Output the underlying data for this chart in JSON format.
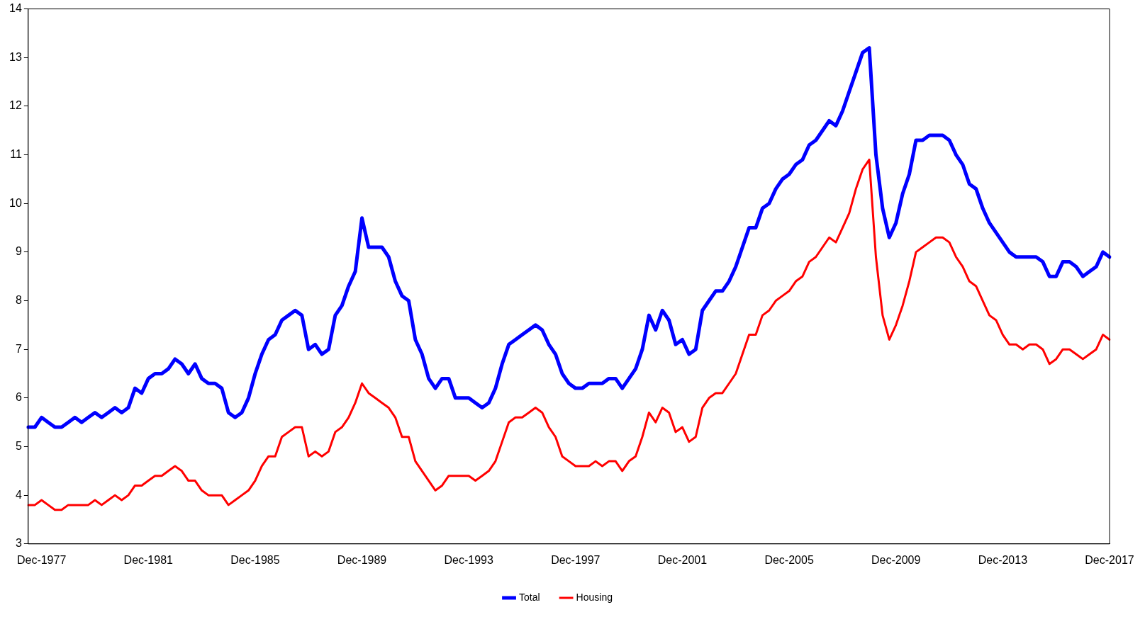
{
  "chart_data": {
    "type": "line",
    "categories": [
      null,
      null,
      "Dec-1977",
      null,
      null,
      null,
      null,
      null,
      null,
      null,
      null,
      null,
      null,
      null,
      null,
      null,
      null,
      null,
      "Dec-1981",
      null,
      null,
      null,
      null,
      null,
      null,
      null,
      null,
      null,
      null,
      null,
      null,
      null,
      null,
      null,
      "Dec-1985",
      null,
      null,
      null,
      null,
      null,
      null,
      null,
      null,
      null,
      null,
      null,
      null,
      null,
      null,
      null,
      "Dec-1989",
      null,
      null,
      null,
      null,
      null,
      null,
      null,
      null,
      null,
      null,
      null,
      null,
      null,
      null,
      null,
      "Dec-1993",
      null,
      null,
      null,
      null,
      null,
      null,
      null,
      null,
      null,
      null,
      null,
      null,
      null,
      null,
      null,
      "Dec-1997",
      null,
      null,
      null,
      null,
      null,
      null,
      null,
      null,
      null,
      null,
      null,
      null,
      null,
      null,
      null,
      "Dec-2001",
      null,
      null,
      null,
      null,
      null,
      null,
      null,
      null,
      null,
      null,
      null,
      null,
      null,
      null,
      null,
      "Dec-2005",
      null,
      null,
      null,
      null,
      null,
      null,
      null,
      null,
      null,
      null,
      null,
      null,
      null,
      null,
      null,
      "Dec-2009",
      null,
      null,
      null,
      null,
      null,
      null,
      null,
      null,
      null,
      null,
      null,
      null,
      null,
      null,
      null,
      "Dec-2013",
      null,
      null,
      null,
      null,
      null,
      null,
      null,
      null,
      null,
      null,
      null,
      null,
      null,
      null,
      null,
      "Dec-2017"
    ],
    "series": [
      {
        "name": "Total",
        "color": "#0000ff",
        "values": [
          5.4,
          5.4,
          5.6,
          5.5,
          5.4,
          5.4,
          5.5,
          5.6,
          5.5,
          5.6,
          5.7,
          5.6,
          5.7,
          5.8,
          5.7,
          5.8,
          6.2,
          6.1,
          6.4,
          6.5,
          6.5,
          6.6,
          6.8,
          6.7,
          6.5,
          6.7,
          6.4,
          6.3,
          6.3,
          6.2,
          5.7,
          5.6,
          5.7,
          6.0,
          6.5,
          6.9,
          7.2,
          7.3,
          7.6,
          7.7,
          7.8,
          7.7,
          7.0,
          7.1,
          6.9,
          7.0,
          7.7,
          7.9,
          8.3,
          8.6,
          9.7,
          9.1,
          9.1,
          9.1,
          8.9,
          8.4,
          8.1,
          8.0,
          7.2,
          6.9,
          6.4,
          6.2,
          6.4,
          6.4,
          6.0,
          6.0,
          6.0,
          5.9,
          5.8,
          5.9,
          6.2,
          6.7,
          7.1,
          7.2,
          7.3,
          7.4,
          7.5,
          7.4,
          7.1,
          6.9,
          6.5,
          6.3,
          6.2,
          6.2,
          6.3,
          6.3,
          6.3,
          6.4,
          6.4,
          6.2,
          6.4,
          6.6,
          7.0,
          7.7,
          7.4,
          7.8,
          7.6,
          7.1,
          7.2,
          6.9,
          7.0,
          7.8,
          8.0,
          8.2,
          8.2,
          8.4,
          8.7,
          9.1,
          9.5,
          9.5,
          9.9,
          10.0,
          10.3,
          10.5,
          10.6,
          10.8,
          10.9,
          11.2,
          11.3,
          11.5,
          11.7,
          11.6,
          11.9,
          12.3,
          12.7,
          13.1,
          13.2,
          11.0,
          9.9,
          9.3,
          9.6,
          10.2,
          10.6,
          11.3,
          11.3,
          11.4,
          11.4,
          11.4,
          11.3,
          11.0,
          10.8,
          10.4,
          10.3,
          9.9,
          9.6,
          9.4,
          9.2,
          9.0,
          8.9,
          8.9,
          8.9,
          8.9,
          8.8,
          8.5,
          8.5,
          8.8,
          8.8,
          8.7,
          8.5,
          8.6,
          8.7,
          9.0,
          8.9
        ]
      },
      {
        "name": "Housing",
        "color": "#ff0000",
        "values": [
          3.8,
          3.8,
          3.9,
          3.8,
          3.7,
          3.7,
          3.8,
          3.8,
          3.8,
          3.8,
          3.9,
          3.8,
          3.9,
          4.0,
          3.9,
          4.0,
          4.2,
          4.2,
          4.3,
          4.4,
          4.4,
          4.5,
          4.6,
          4.5,
          4.3,
          4.3,
          4.1,
          4.0,
          4.0,
          4.0,
          3.8,
          3.9,
          4.0,
          4.1,
          4.3,
          4.6,
          4.8,
          4.8,
          5.2,
          5.3,
          5.4,
          5.4,
          4.8,
          4.9,
          4.8,
          4.9,
          5.3,
          5.4,
          5.6,
          5.9,
          6.3,
          6.1,
          6.0,
          5.9,
          5.8,
          5.6,
          5.2,
          5.2,
          4.7,
          4.5,
          4.3,
          4.1,
          4.2,
          4.4,
          4.4,
          4.4,
          4.4,
          4.3,
          4.4,
          4.5,
          4.7,
          5.1,
          5.5,
          5.6,
          5.6,
          5.7,
          5.8,
          5.7,
          5.4,
          5.2,
          4.8,
          4.7,
          4.6,
          4.6,
          4.6,
          4.7,
          4.6,
          4.7,
          4.7,
          4.5,
          4.7,
          4.8,
          5.2,
          5.7,
          5.5,
          5.8,
          5.7,
          5.3,
          5.4,
          5.1,
          5.2,
          5.8,
          6.0,
          6.1,
          6.1,
          6.3,
          6.5,
          6.9,
          7.3,
          7.3,
          7.7,
          7.8,
          8.0,
          8.1,
          8.2,
          8.4,
          8.5,
          8.8,
          8.9,
          9.1,
          9.3,
          9.2,
          9.5,
          9.8,
          10.3,
          10.7,
          10.9,
          8.9,
          7.7,
          7.2,
          7.5,
          7.9,
          8.4,
          9.0,
          9.1,
          9.2,
          9.3,
          9.3,
          9.2,
          8.9,
          8.7,
          8.4,
          8.3,
          8.0,
          7.7,
          7.6,
          7.3,
          7.1,
          7.1,
          7.0,
          7.1,
          7.1,
          7.0,
          6.7,
          6.8,
          7.0,
          7.0,
          6.9,
          6.8,
          6.9,
          7.0,
          7.3,
          7.2
        ]
      }
    ],
    "ylim": [
      3,
      14
    ],
    "yticks": [
      3,
      4,
      5,
      6,
      7,
      8,
      9,
      10,
      11,
      12,
      13,
      14
    ],
    "legend": "bottom",
    "marker": "none"
  }
}
